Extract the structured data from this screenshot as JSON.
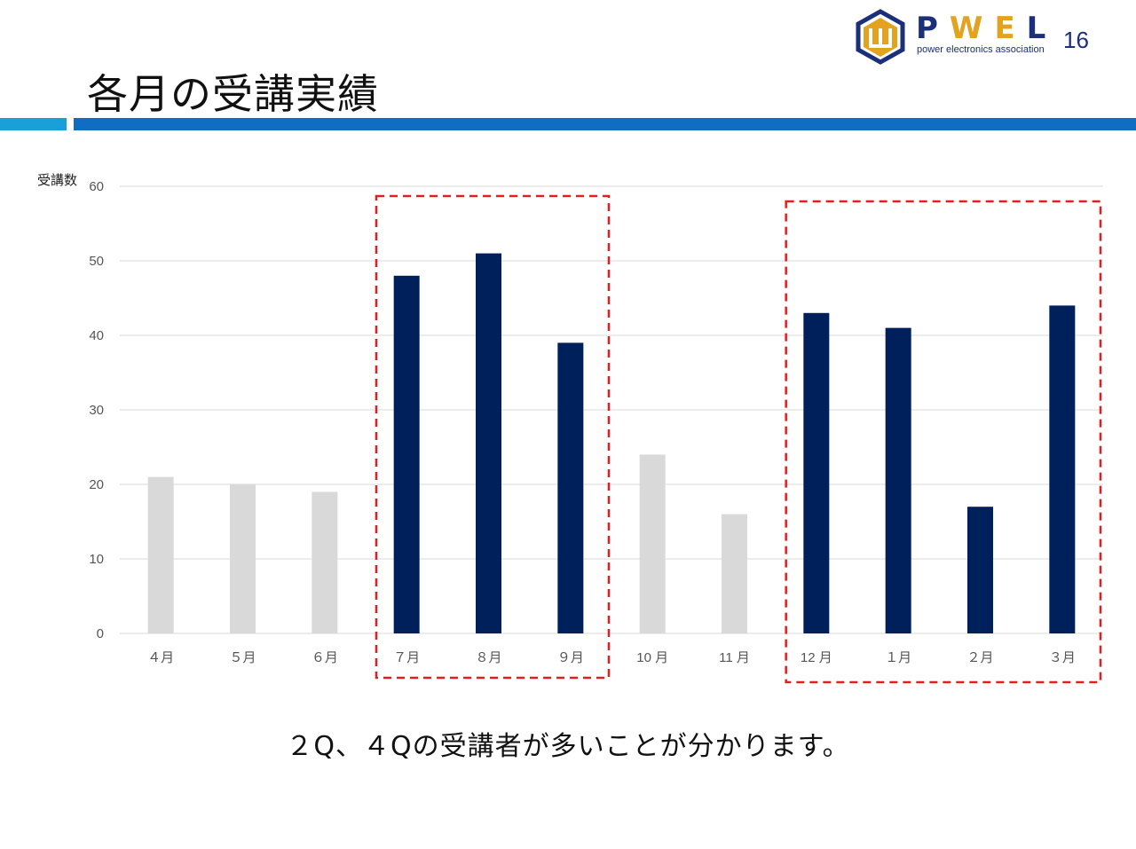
{
  "slide": {
    "title": "各月の受講実績",
    "page_number": "16",
    "caption": "２Q、４Qの受講者が多いことが分かります。"
  },
  "logo": {
    "letters": "PWEL",
    "subtitle": "power electronics association",
    "colors": {
      "navy": "#1b2f7a",
      "gold": "#e3a321"
    }
  },
  "chart_data": {
    "type": "bar",
    "ylabel": "受講数",
    "ylim": [
      0,
      60
    ],
    "yticks": [
      0,
      10,
      20,
      30,
      40,
      50,
      60
    ],
    "categories": [
      "４月",
      "５月",
      "６月",
      "７月",
      "８月",
      "９月",
      "10 月",
      "11 月",
      "12 月",
      "１月",
      "２月",
      "３月"
    ],
    "values": [
      21,
      20,
      19,
      48,
      51,
      39,
      24,
      16,
      43,
      41,
      17,
      44
    ],
    "highlighted": [
      false,
      false,
      false,
      true,
      true,
      true,
      false,
      false,
      true,
      true,
      true,
      true
    ],
    "colors": {
      "normal": "#d9d9d9",
      "highlight": "#00205b",
      "grid": "#d9d9d9",
      "box": "#e02020"
    },
    "grid": true,
    "highlight_groups": [
      [
        3,
        5
      ],
      [
        8,
        11
      ]
    ]
  }
}
